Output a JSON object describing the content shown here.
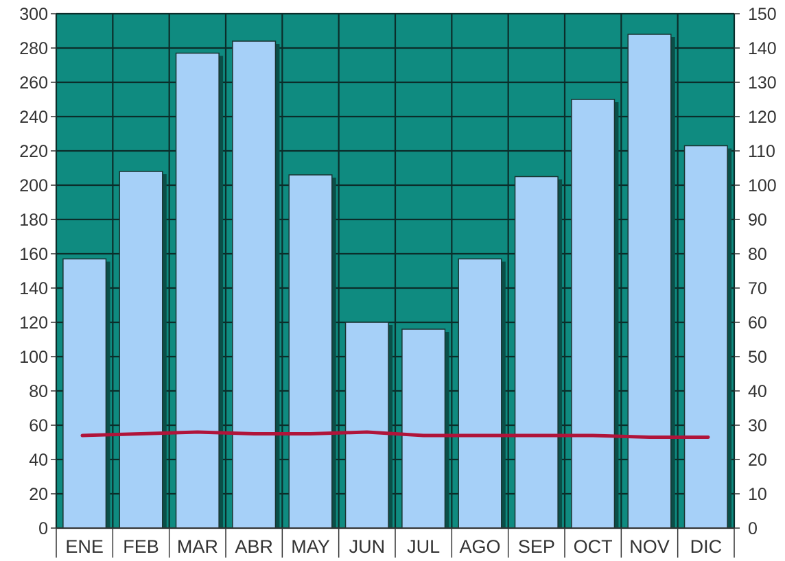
{
  "chart_data": {
    "type": "bar",
    "categories": [
      "ENE",
      "FEB",
      "MAR",
      "ABR",
      "MAY",
      "JUN",
      "JUL",
      "AGO",
      "SEP",
      "OCT",
      "NOV",
      "DIC"
    ],
    "series": [
      {
        "axis": "left",
        "type": "bar",
        "values": [
          157,
          208,
          277,
          284,
          206,
          120,
          116,
          157,
          205,
          250,
          288,
          223
        ]
      },
      {
        "axis": "right",
        "type": "line",
        "values": [
          27,
          27.5,
          28,
          27.5,
          27.5,
          28,
          27,
          27,
          27,
          27,
          26.5,
          26.5
        ]
      }
    ],
    "y_left": {
      "range": [
        0,
        300
      ],
      "step": 20
    },
    "y_right": {
      "range": [
        0,
        150
      ],
      "step": 10
    },
    "grid": true,
    "colors": {
      "plot_background": "#0f8b80",
      "bar_fill": "#a6d0f8",
      "bar_stroke": "#1a3330",
      "gridline": "#0b2d2a",
      "line": "#b0143a",
      "tick_text": "#333333",
      "category_border": "#333333"
    }
  }
}
